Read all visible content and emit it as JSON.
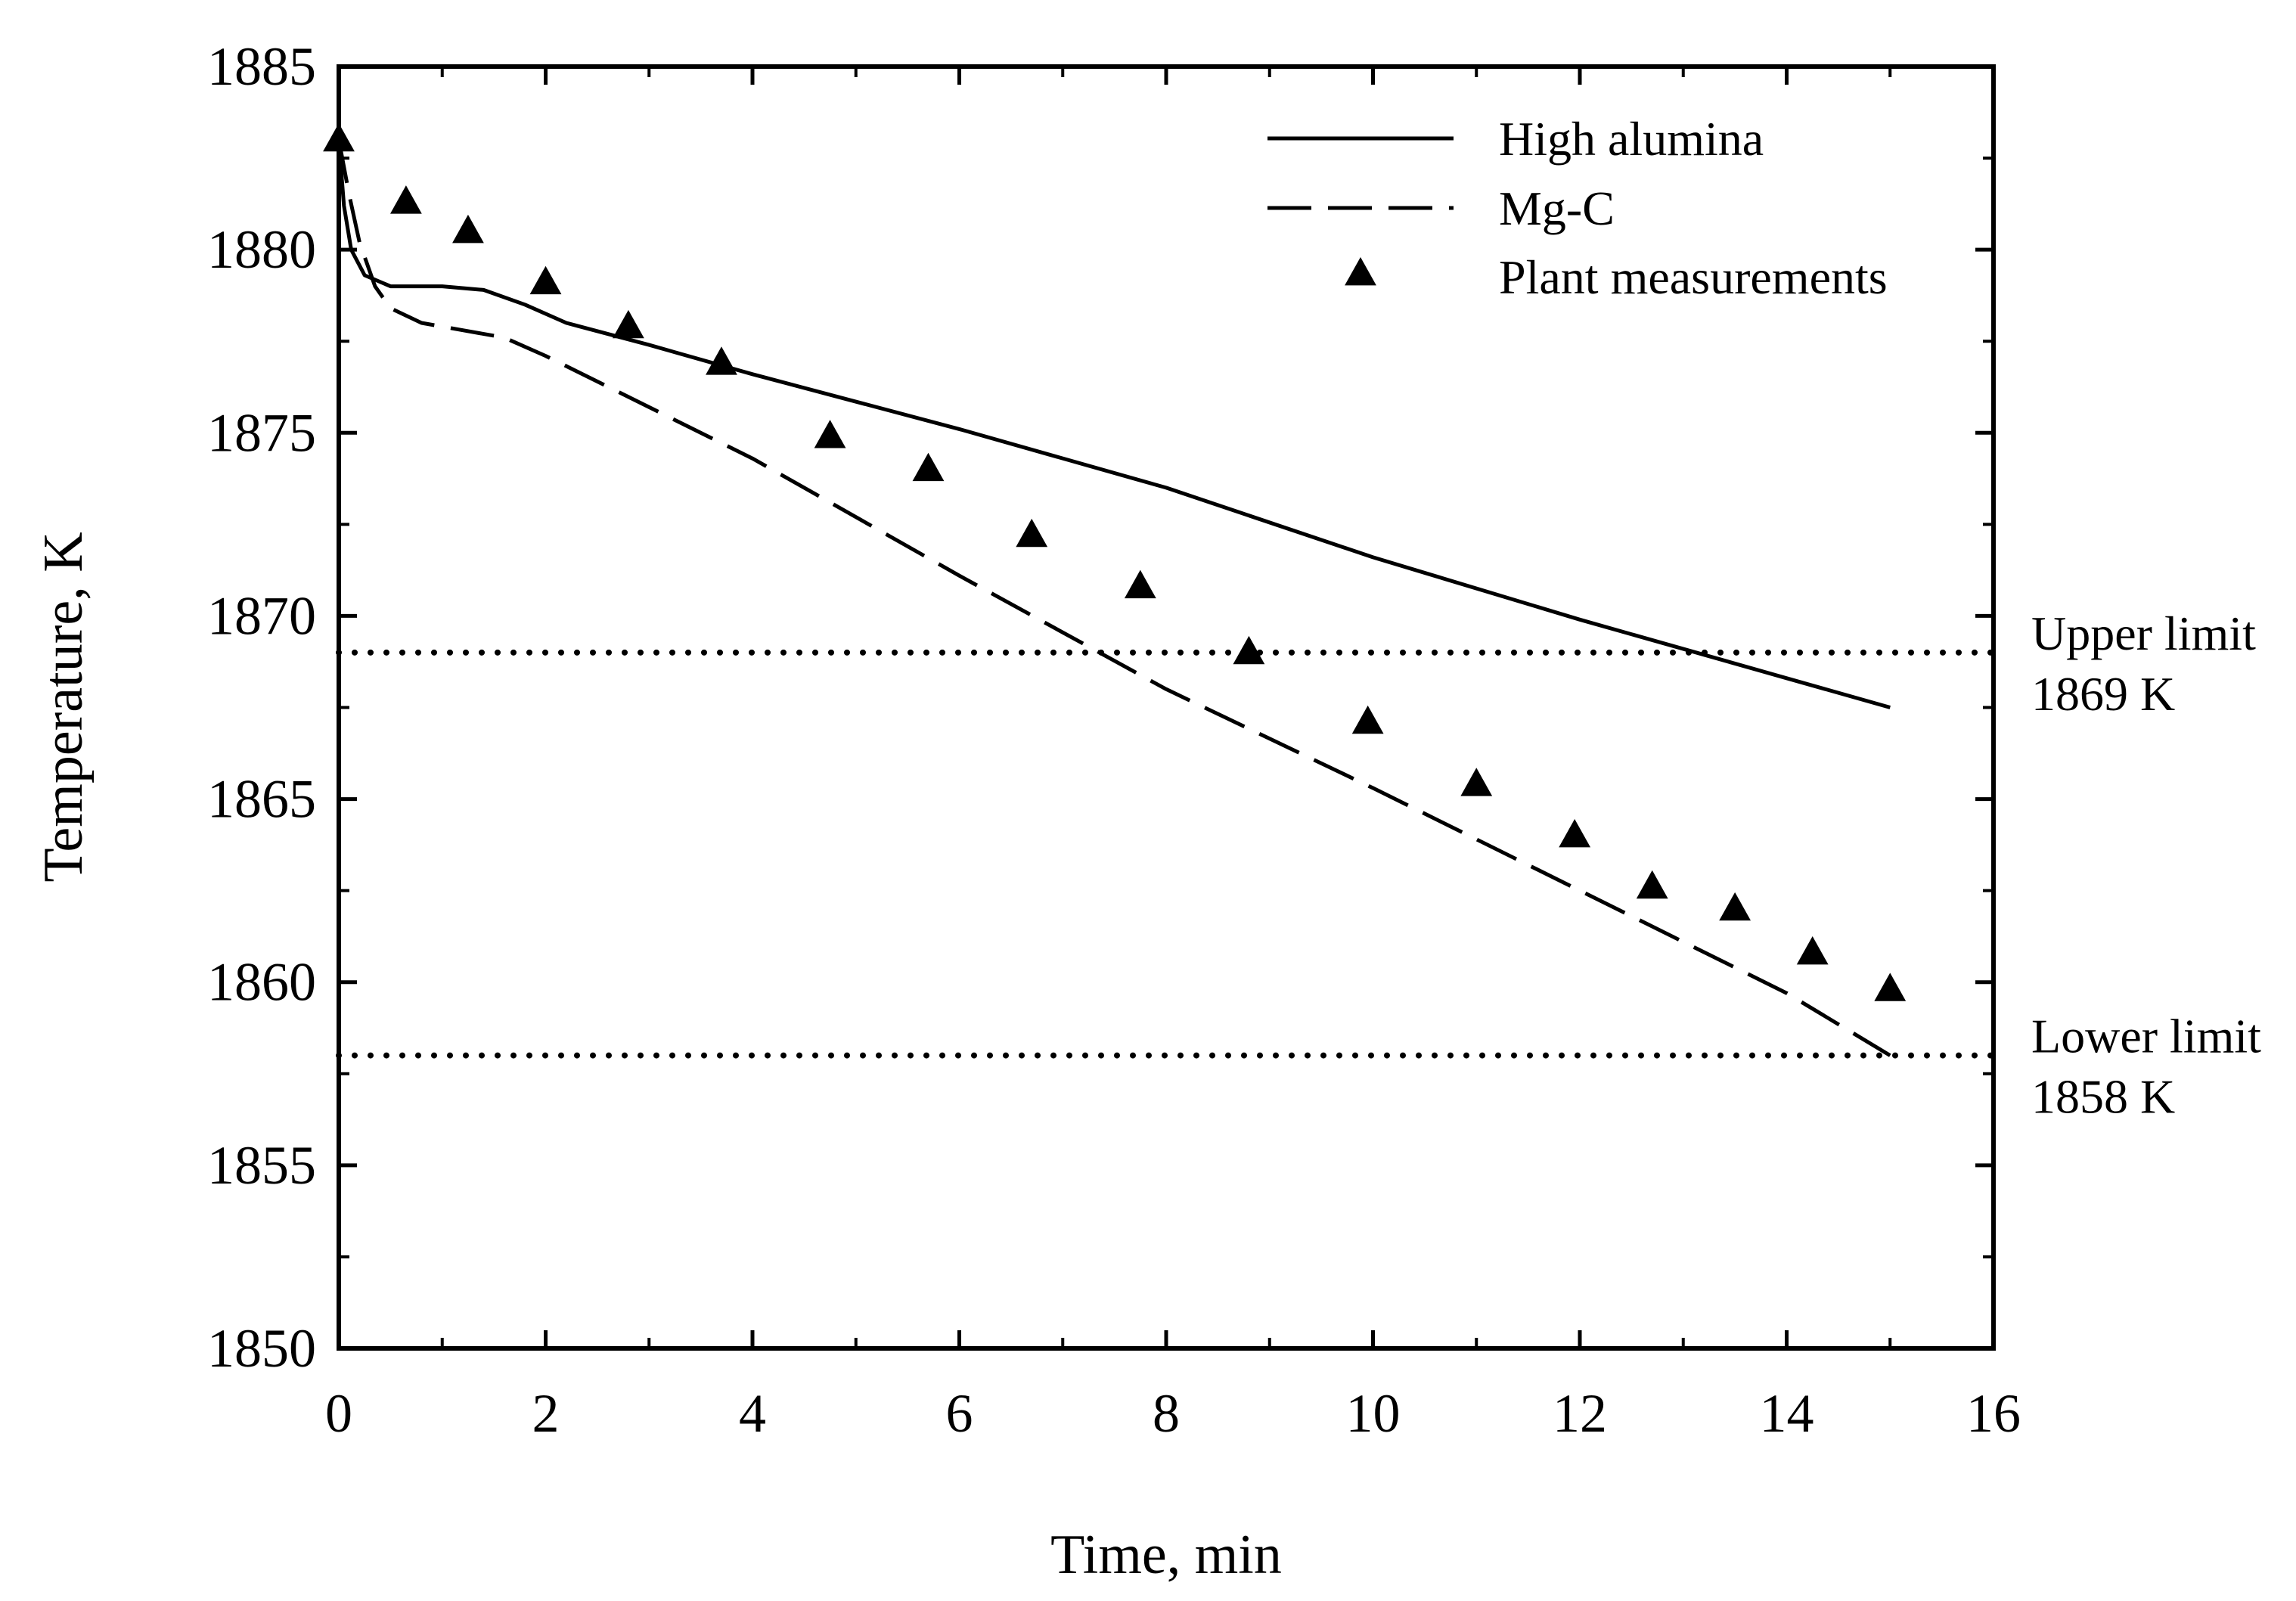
{
  "chart_data": {
    "type": "line",
    "title": "",
    "xlabel": "Time, min",
    "ylabel": "Temperature, K",
    "xlim": [
      0,
      16
    ],
    "ylim": [
      1850,
      1885
    ],
    "grid": false,
    "legend_position": "top-right",
    "x_ticks": [
      0,
      2,
      4,
      6,
      8,
      10,
      12,
      14,
      16
    ],
    "y_ticks": [
      1850,
      1855,
      1860,
      1865,
      1870,
      1875,
      1880,
      1885
    ],
    "x_tick_labels": [
      "0",
      "2",
      "4",
      "6",
      "8",
      "10",
      "12",
      "14",
      "16"
    ],
    "y_tick_labels": [
      "1850",
      "1855",
      "1860",
      "1865",
      "1870",
      "1875",
      "1880",
      "1885"
    ],
    "series": [
      {
        "name": "High alumina",
        "style": "solid",
        "x": [
          0,
          0.05,
          0.12,
          0.25,
          0.5,
          1.0,
          1.4,
          1.8,
          2.2,
          3.0,
          4.0,
          6.0,
          8.0,
          10.0,
          12.0,
          14.0,
          15.0
        ],
        "y": [
          1883,
          1881.2,
          1880.0,
          1879.3,
          1879.0,
          1879.0,
          1878.9,
          1878.5,
          1878.0,
          1877.4,
          1876.6,
          1875.1,
          1873.5,
          1871.6,
          1869.9,
          1868.3,
          1867.5
        ]
      },
      {
        "name": "Mg-C",
        "style": "dashed",
        "x": [
          0,
          0.1,
          0.2,
          0.35,
          0.5,
          0.8,
          1.2,
          1.6,
          2.0,
          3.0,
          4.0,
          6.0,
          8.0,
          10.0,
          12.0,
          14.0,
          15.0
        ],
        "y": [
          1883,
          1881.5,
          1880.2,
          1879.0,
          1878.4,
          1878.0,
          1877.8,
          1877.6,
          1877.1,
          1875.7,
          1874.3,
          1871.1,
          1868.0,
          1865.3,
          1862.5,
          1859.7,
          1858.0
        ]
      },
      {
        "name": "Plant measurements",
        "style": "triangle-markers",
        "x": [
          0,
          0.65,
          1.25,
          2.0,
          2.8,
          3.7,
          4.75,
          5.7,
          6.7,
          7.75,
          8.8,
          9.95,
          11.0,
          11.95,
          12.7,
          13.5,
          14.25,
          15.0
        ],
        "y": [
          1883.0,
          1881.3,
          1880.5,
          1879.1,
          1877.9,
          1876.9,
          1874.9,
          1874.0,
          1872.2,
          1870.8,
          1869.0,
          1867.1,
          1865.4,
          1864.0,
          1862.6,
          1862.0,
          1860.8,
          1859.8
        ]
      }
    ],
    "reference_lines": [
      {
        "name": "Upper limit",
        "value": 1869,
        "style": "dotted",
        "label_line1": "Upper limit",
        "label_line2": "1869 K"
      },
      {
        "name": "Lower limit",
        "value": 1858,
        "style": "dotted",
        "label_line1": "Lower limit",
        "label_line2": "1858 K"
      }
    ]
  }
}
